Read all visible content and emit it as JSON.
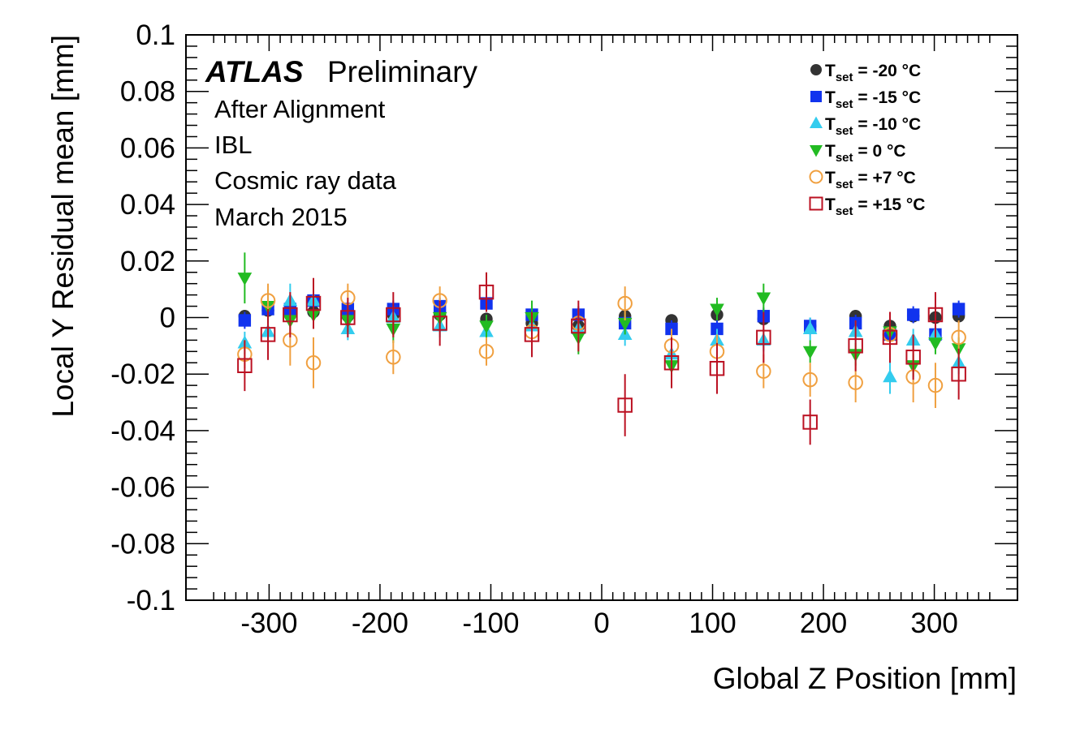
{
  "chart_data": {
    "type": "scatter",
    "title": "",
    "xlabel": "Global Z Position [mm]",
    "ylabel": "Local Y Residual mean [mm]",
    "xlim": [
      -375,
      375
    ],
    "ylim": [
      -0.1,
      0.1
    ],
    "x_ticks": [
      -300,
      -200,
      -100,
      0,
      100,
      200,
      300
    ],
    "x_tick_labels": [
      "-300",
      "-200",
      "-100",
      "0",
      "100",
      "200",
      "300"
    ],
    "y_ticks": [
      -0.1,
      -0.08,
      -0.06,
      -0.04,
      -0.02,
      0,
      0.02,
      0.04,
      0.06,
      0.08,
      0.1
    ],
    "y_tick_labels": [
      "-0.1",
      "-0.08",
      "-0.06",
      "-0.04",
      "-0.02",
      "0",
      "0.02",
      "0.04",
      "0.06",
      "0.08",
      "0.1"
    ],
    "grid": false,
    "legend_position": "top-right",
    "annotations": {
      "atlas": "ATLAS",
      "preliminary": "Preliminary",
      "lines": [
        "After Alignment",
        "IBL",
        "Cosmic ray data",
        "March 2015"
      ]
    },
    "x": [
      -322,
      -301,
      -281,
      -260,
      -229,
      -188,
      -146,
      -104,
      -63,
      -21,
      21,
      63,
      104,
      146,
      188,
      229,
      260,
      281,
      301,
      322
    ],
    "series": [
      {
        "name_main": "T",
        "name_sub": "set",
        "name_rest": " = -20  °C",
        "marker": "circle-filled",
        "color": "#333333",
        "y": [
          0.0005,
          0.0025,
          0.001,
          0.002,
          0.0005,
          0.001,
          0.001,
          -0.0005,
          -0.002,
          -0.003,
          0.0005,
          -0.001,
          0.001,
          -0.0005,
          -0.003,
          0.0005,
          -0.003,
          0.0005,
          0.0,
          0.0005
        ],
        "err": [
          0.002,
          0.002,
          0.002,
          0.002,
          0.002,
          0.002,
          0.002,
          0.002,
          0.002,
          0.002,
          0.002,
          0.002,
          0.002,
          0.002,
          0.002,
          0.002,
          0.002,
          0.002,
          0.002,
          0.002
        ]
      },
      {
        "name_main": "T",
        "name_sub": "set",
        "name_rest": " = -15  °C",
        "marker": "square-filled",
        "color": "#1133ee",
        "y": [
          -0.001,
          0.003,
          0.003,
          0.006,
          0.003,
          0.003,
          0.004,
          0.005,
          0.001,
          0.001,
          -0.002,
          -0.004,
          -0.004,
          0.0005,
          -0.003,
          -0.002,
          -0.006,
          0.001,
          -0.006,
          0.003
        ],
        "err": [
          0.003,
          0.003,
          0.003,
          0.003,
          0.003,
          0.003,
          0.003,
          0.003,
          0.003,
          0.003,
          0.003,
          0.003,
          0.003,
          0.003,
          0.003,
          0.003,
          0.003,
          0.003,
          0.003,
          0.003
        ]
      },
      {
        "name_main": "T",
        "name_sub": "set",
        "name_rest": " = -10  °C",
        "marker": "triangle-up",
        "color": "#33ccee",
        "y": [
          -0.009,
          -0.005,
          0.006,
          0.006,
          -0.004,
          0.0,
          -0.003,
          -0.005,
          -0.003,
          -0.004,
          -0.006,
          -0.013,
          -0.008,
          -0.008,
          -0.004,
          -0.005,
          -0.021,
          -0.008,
          -0.006,
          -0.016
        ],
        "err": [
          0.004,
          0.004,
          0.006,
          0.004,
          0.004,
          0.004,
          0.004,
          0.004,
          0.004,
          0.004,
          0.004,
          0.004,
          0.004,
          0.004,
          0.004,
          0.004,
          0.006,
          0.004,
          0.004,
          0.004
        ]
      },
      {
        "name_main": "T",
        "name_sub": "set",
        "name_rest": " = 0  °C",
        "marker": "triangle-down",
        "color": "#22bb22",
        "y": [
          0.014,
          0.004,
          -0.001,
          0.001,
          -0.001,
          -0.004,
          0.0,
          -0.003,
          0.0,
          -0.007,
          -0.002,
          -0.017,
          0.003,
          0.007,
          -0.012,
          -0.013,
          -0.005,
          -0.017,
          -0.009,
          -0.011
        ],
        "err": [
          0.009,
          0.006,
          0.005,
          0.005,
          0.004,
          0.005,
          0.004,
          0.004,
          0.006,
          0.006,
          0.004,
          0.004,
          0.004,
          0.005,
          0.004,
          0.004,
          0.004,
          0.004,
          0.004,
          0.004
        ]
      },
      {
        "name_main": "T",
        "name_sub": "set",
        "name_rest": " = +7  °C",
        "marker": "circle-open",
        "color": "#f0a040",
        "y": [
          -0.013,
          0.006,
          -0.008,
          -0.016,
          0.007,
          -0.014,
          0.006,
          -0.012,
          -0.005,
          -0.002,
          0.005,
          -0.01,
          -0.012,
          -0.019,
          -0.022,
          -0.023,
          -0.006,
          -0.021,
          -0.024,
          -0.007
        ],
        "err": [
          0.005,
          0.006,
          0.009,
          0.009,
          0.005,
          0.006,
          0.005,
          0.005,
          0.005,
          0.005,
          0.006,
          0.006,
          0.006,
          0.006,
          0.006,
          0.007,
          0.007,
          0.009,
          0.008,
          0.006
        ]
      },
      {
        "name_main": "T",
        "name_sub": "set",
        "name_rest": " = +15  °C",
        "marker": "square-open",
        "color": "#bb1122",
        "y": [
          -0.017,
          -0.006,
          0.001,
          0.005,
          0.0,
          0.001,
          -0.002,
          0.009,
          -0.006,
          -0.003,
          -0.031,
          -0.016,
          -0.018,
          -0.007,
          -0.037,
          -0.01,
          -0.007,
          -0.014,
          0.001,
          -0.02
        ],
        "err": [
          0.009,
          0.009,
          0.008,
          0.009,
          0.007,
          0.008,
          0.008,
          0.007,
          0.008,
          0.009,
          0.011,
          0.009,
          0.009,
          0.009,
          0.008,
          0.009,
          0.009,
          0.008,
          0.008,
          0.009
        ]
      }
    ]
  }
}
